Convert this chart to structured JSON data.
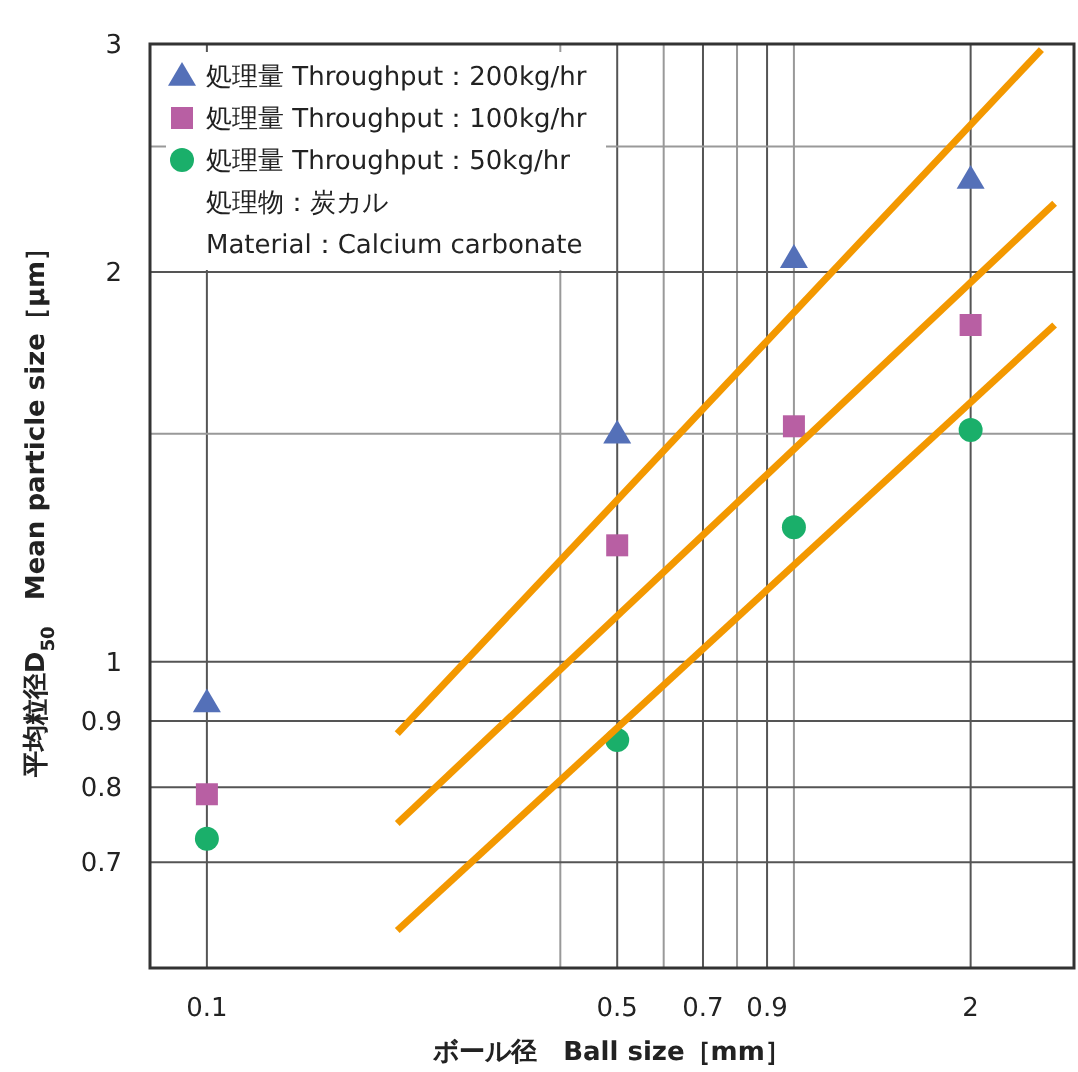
{
  "chart_data": {
    "type": "scatter",
    "log": "xy",
    "grid": true,
    "legend": "top left",
    "xlabel": "ボール径　Ball size［mm］",
    "ylabel": "平均粒径D$_{50}$　Mean particle size［μm］",
    "xlim": [
      0.08,
      3
    ],
    "ylim": [
      0.58,
      3
    ],
    "xticks": [
      0.1,
      {
        "value": 0.4,
        "label": null
      },
      0.5,
      {
        "value": 0.6,
        "label": null
      },
      0.7,
      {
        "value": 0.8,
        "label": null
      },
      0.9,
      {
        "value": 1,
        "label": null
      },
      2
    ],
    "yticks": [
      0.7,
      0.8,
      0.9,
      1,
      {
        "value": 1.5,
        "label": null
      },
      2,
      {
        "value": 2.5,
        "label": null
      },
      3
    ],
    "annotations": [
      "処理物：炭カル",
      "Material：Calcium carbonate"
    ],
    "series": [
      {
        "name": "処理量 Throughput：200kg/hr",
        "color": "#5470b8",
        "marker": "triangle",
        "x": [
          0.1,
          0.5,
          1,
          2
        ],
        "values": [
          0.93,
          1.5,
          2.05,
          2.36
        ]
      },
      {
        "name": "処理量 Throughput：100kg/hr",
        "color": "#b85fa3",
        "marker": "square",
        "x": [
          0.1,
          0.5,
          1,
          2
        ],
        "values": [
          0.79,
          1.23,
          1.52,
          1.82
        ]
      },
      {
        "name": "処理量 Throughput：50kg/hr",
        "color": "#1aaf6a",
        "marker": "circle",
        "x": [
          0.1,
          0.5,
          1,
          2
        ],
        "values": [
          0.73,
          0.87,
          1.27,
          1.51
        ]
      },
      {
        "type": "line",
        "color": "#f39800",
        "x": [
          0.211,
          2.64
        ],
        "values": [
          0.88,
          2.97
        ]
      },
      {
        "type": "line",
        "color": "#f39800",
        "x": [
          0.211,
          2.78
        ],
        "values": [
          0.75,
          2.26
        ]
      },
      {
        "type": "line",
        "color": "#f39800",
        "x": [
          0.211,
          2.78
        ],
        "values": [
          0.62,
          1.82
        ]
      }
    ]
  }
}
